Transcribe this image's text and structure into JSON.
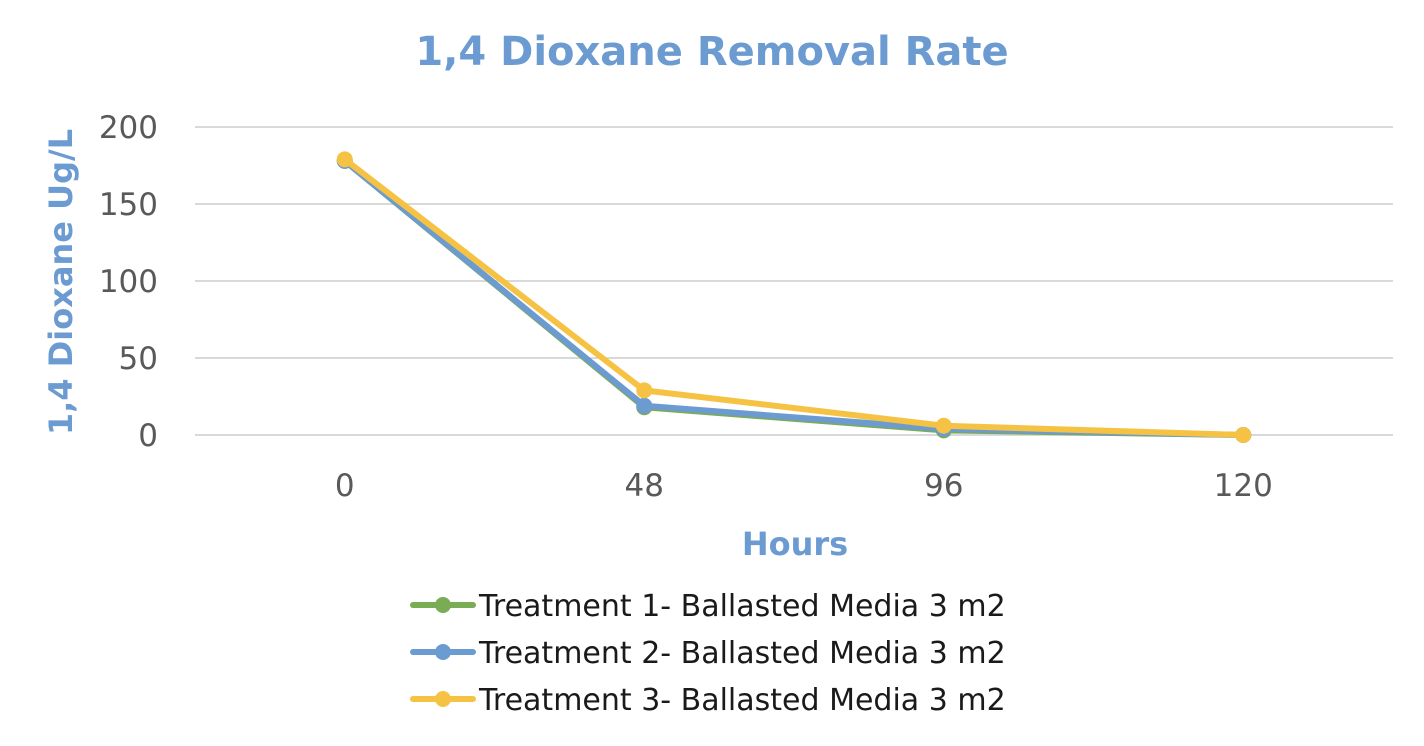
{
  "chart_data": {
    "type": "line",
    "title": "1,4 Dioxane Removal Rate",
    "xlabel": "Hours",
    "ylabel": "1,4 Dioxane Ug/L",
    "categories": [
      "0",
      "48",
      "96",
      "120"
    ],
    "ylim": [
      0,
      200
    ],
    "yticks": [
      "0",
      "50",
      "100",
      "150",
      "200"
    ],
    "grid": true,
    "legend_position": "bottom",
    "series": [
      {
        "name": "Treatment 1- Ballasted Media 3 m2",
        "color": "#7aab55",
        "values": [
          178,
          18,
          3,
          0
        ]
      },
      {
        "name": "Treatment 2- Ballasted Media 3 m2",
        "color": "#6b9bd1",
        "values": [
          178,
          19,
          4,
          0
        ]
      },
      {
        "name": "Treatment 3- Ballasted Media 3 m2",
        "color": "#f6c244",
        "values": [
          179,
          29,
          6,
          0
        ]
      }
    ]
  }
}
